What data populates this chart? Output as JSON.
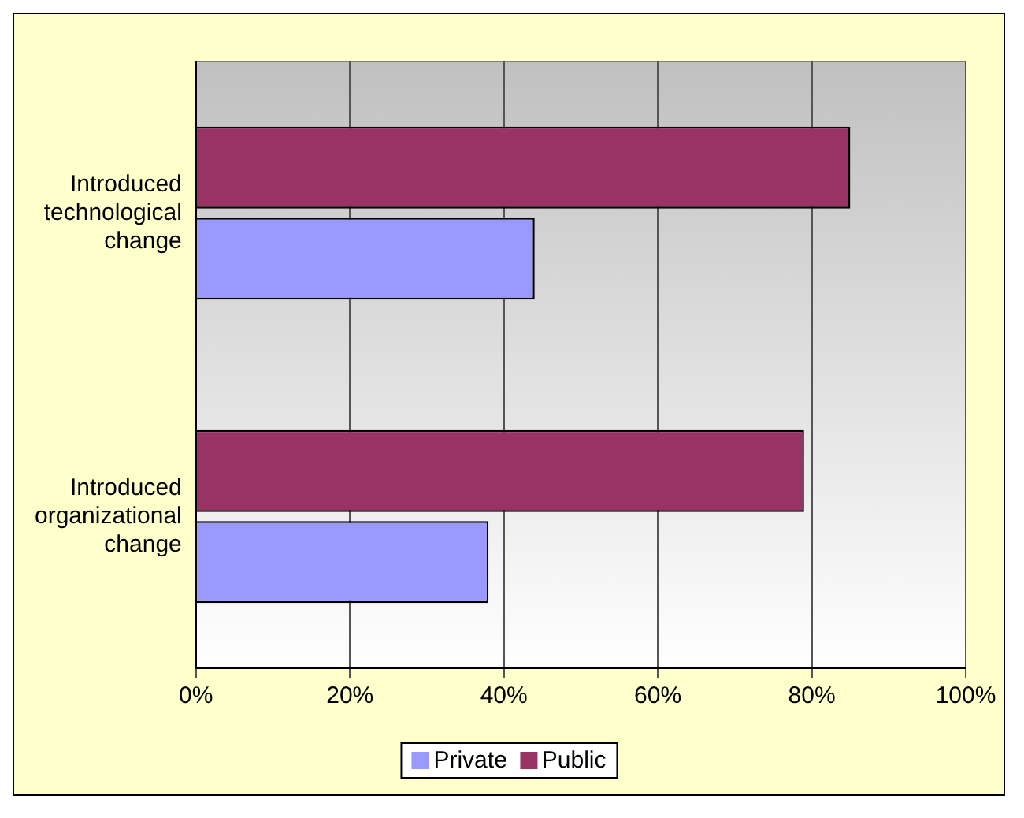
{
  "chart_data": {
    "type": "bar",
    "orientation": "horizontal",
    "categories": [
      "Introduced technological change",
      "Introduced organizational change"
    ],
    "series": [
      {
        "name": "Public",
        "color": "#993366",
        "values": [
          85,
          79
        ]
      },
      {
        "name": "Private",
        "color": "#9999ff",
        "values": [
          44,
          38
        ]
      }
    ],
    "xlim": [
      0,
      100
    ],
    "xticks": [
      {
        "value": 0,
        "label": "0%"
      },
      {
        "value": 20,
        "label": "20%"
      },
      {
        "value": 40,
        "label": "40%"
      },
      {
        "value": 60,
        "label": "60%"
      },
      {
        "value": 80,
        "label": "80%"
      },
      {
        "value": 100,
        "label": "100%"
      }
    ],
    "grid": "x",
    "legend": "bottom"
  }
}
